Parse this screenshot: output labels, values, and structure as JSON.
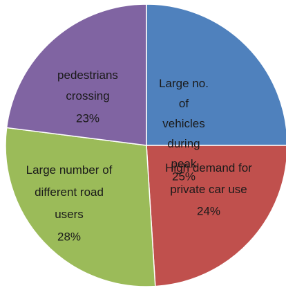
{
  "chart_data": {
    "type": "pie",
    "categories": [
      "Large no. of vehicles during peak",
      "High demand for private car use",
      "Large number of different road users",
      "pedestrians crossing"
    ],
    "values": [
      25,
      24,
      28,
      23
    ],
    "value_labels": [
      "25%",
      "24%",
      "28%",
      "23%"
    ],
    "colors": [
      "#4f81bd",
      "#c0504d",
      "#9bbb59",
      "#8064a2"
    ]
  }
}
